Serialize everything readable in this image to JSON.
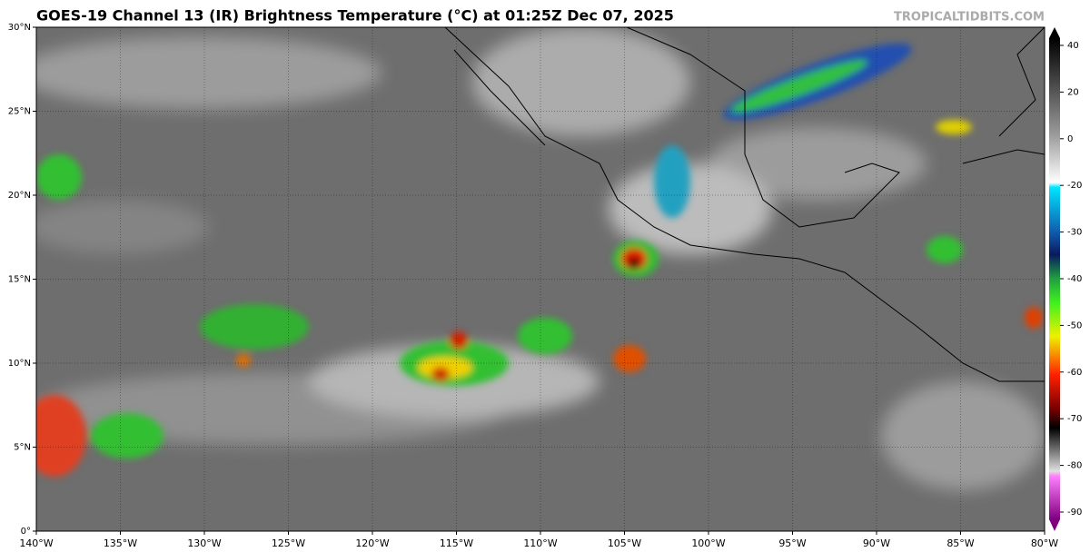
{
  "header": {
    "title": "GOES-19 Channel 13 (IR) Brightness Temperature (°C) at 01:25Z Dec 07, 2025",
    "credit": "TROPICALTIDBITS.COM"
  },
  "map": {
    "lat_ticks": [
      {
        "value": 0,
        "label": "0°"
      },
      {
        "value": 5,
        "label": "5°N"
      },
      {
        "value": 10,
        "label": "10°N"
      },
      {
        "value": 15,
        "label": "15°N"
      },
      {
        "value": 20,
        "label": "20°N"
      },
      {
        "value": 25,
        "label": "25°N"
      },
      {
        "value": 30,
        "label": "30°N"
      }
    ],
    "lon_ticks": [
      {
        "value": -140,
        "label": "140°W"
      },
      {
        "value": -135,
        "label": "135°W"
      },
      {
        "value": -130,
        "label": "130°W"
      },
      {
        "value": -125,
        "label": "125°W"
      },
      {
        "value": -120,
        "label": "120°W"
      },
      {
        "value": -115,
        "label": "115°W"
      },
      {
        "value": -110,
        "label": "110°W"
      },
      {
        "value": -105,
        "label": "105°W"
      },
      {
        "value": -100,
        "label": "100°W"
      },
      {
        "value": -95,
        "label": "95°W"
      },
      {
        "value": -90,
        "label": "90°W"
      },
      {
        "value": -85,
        "label": "85°W"
      },
      {
        "value": -80,
        "label": "80°W"
      }
    ]
  },
  "colorbar": {
    "ticks": [
      40,
      20,
      0,
      -20,
      -30,
      -40,
      -50,
      -60,
      -70,
      -80,
      -90
    ]
  }
}
